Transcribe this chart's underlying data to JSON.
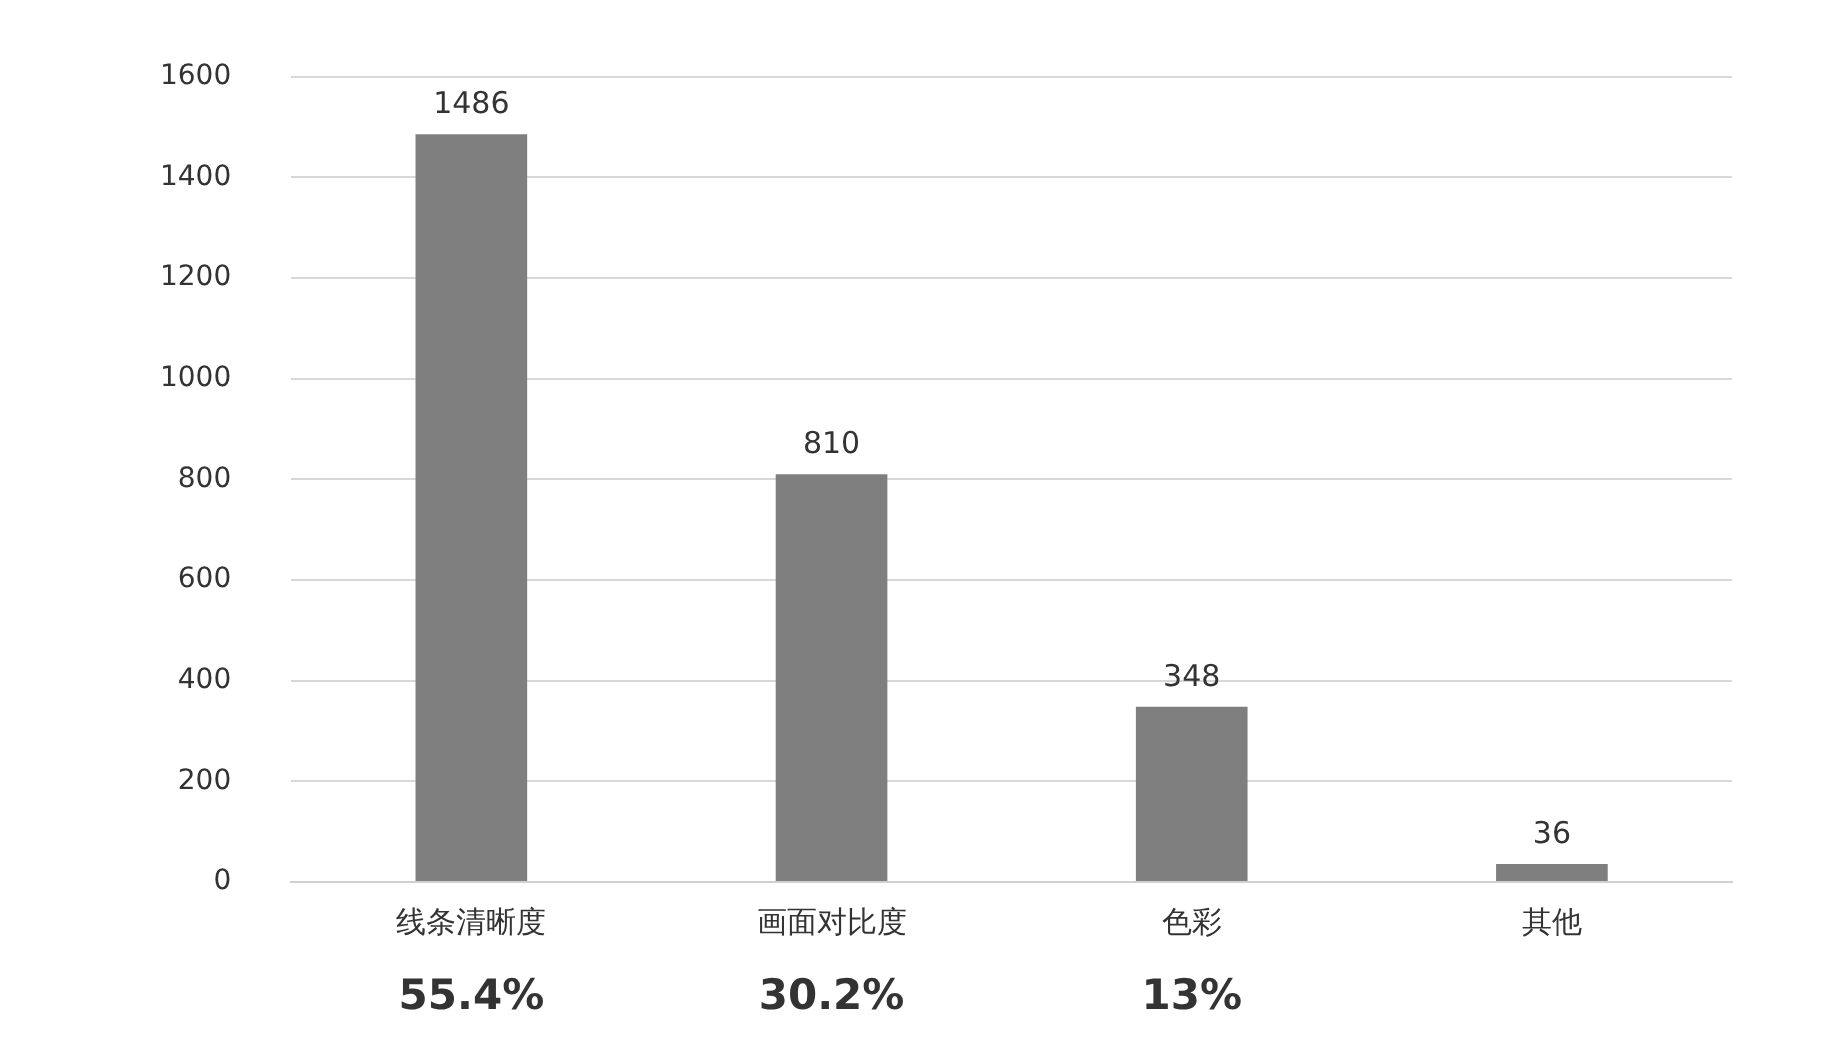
{
  "chart_data": {
    "type": "bar",
    "categories": [
      "线条清晰度",
      "画面对比度",
      "色彩",
      "其他"
    ],
    "values": [
      1486,
      810,
      348,
      36
    ],
    "color": "#7f7f7f",
    "ylim": [
      0,
      1600
    ],
    "yticks": [
      0,
      200,
      400,
      600,
      800,
      1000,
      1200,
      1400,
      1600
    ],
    "grid": "y",
    "legend": false,
    "data_labels": true,
    "annotations": [
      "55.4%",
      "30.2%",
      "13%"
    ]
  }
}
